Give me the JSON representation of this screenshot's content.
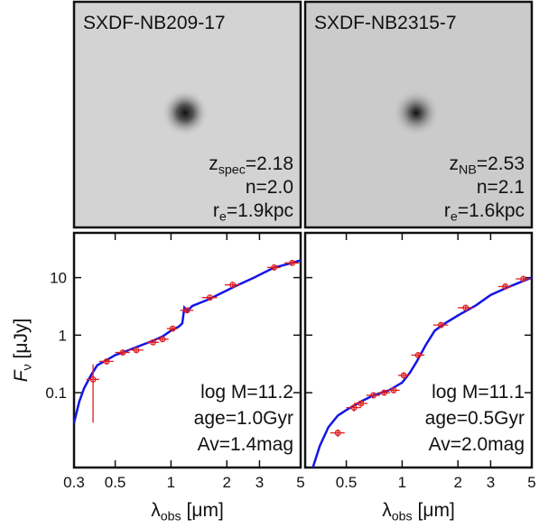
{
  "chart_data": [
    {
      "type": "sed",
      "stamp_title": "SXDF-NB209-17",
      "stamp_notes": [
        {
          "text": "z",
          "sub": "spec",
          "rest": "=2.18"
        },
        {
          "text": "n=2.0"
        },
        {
          "text": "r",
          "sub": "e",
          "rest": "=1.9kpc"
        }
      ],
      "notes": [
        "log M=11.2",
        "age=1.0Gyr",
        "Av=1.4mag"
      ],
      "x_label": {
        "text": "λ",
        "sub": "obs",
        "rest": " [μm]"
      },
      "y_label": {
        "text": "F",
        "sub": "ν",
        "rest": " [μJy]"
      },
      "xlog": true,
      "ylog": true,
      "xlim": [
        0.3,
        5
      ],
      "ylim": [
        0.005,
        60
      ],
      "xticks": [
        0.3,
        0.5,
        1,
        2,
        3,
        5
      ],
      "yticks": [
        0.1,
        1,
        10
      ],
      "model": {
        "color": "#1414e6",
        "x": [
          0.3,
          0.32,
          0.34,
          0.37,
          0.4,
          0.45,
          0.5,
          0.55,
          0.65,
          0.8,
          0.9,
          1.0,
          1.1,
          1.15,
          1.18,
          1.22,
          1.3,
          1.6,
          2.0,
          2.2,
          2.8,
          3.6,
          4.2,
          5.0
        ],
        "values": [
          0.03,
          0.07,
          0.12,
          0.2,
          0.3,
          0.37,
          0.45,
          0.5,
          0.62,
          0.8,
          0.95,
          1.2,
          1.4,
          1.6,
          3.0,
          2.6,
          3.2,
          4.2,
          6.0,
          7.0,
          10,
          15,
          17,
          20
        ]
      },
      "photometry": {
        "color": "#e01c1c",
        "x": [
          0.38,
          0.45,
          0.55,
          0.65,
          0.8,
          0.9,
          1.02,
          1.22,
          1.62,
          2.15,
          3.6,
          4.5
        ],
        "values": [
          0.17,
          0.35,
          0.5,
          0.55,
          0.75,
          0.85,
          1.3,
          2.7,
          4.5,
          7.5,
          15,
          18
        ],
        "xerr": [
          0.03,
          0.04,
          0.05,
          0.06,
          0.06,
          0.07,
          0.07,
          0.1,
          0.15,
          0.2,
          0.3,
          0.4
        ],
        "yerr": [
          0.14,
          0.03,
          0.04,
          0.04,
          0.05,
          0.06,
          0.1,
          0.2,
          0.3,
          0.5,
          1,
          1.2
        ]
      }
    },
    {
      "type": "sed",
      "stamp_title": "SXDF-NB2315-7",
      "stamp_notes": [
        {
          "text": "z",
          "sub": "NB",
          "rest": "=2.53"
        },
        {
          "text": "n=2.1"
        },
        {
          "text": "r",
          "sub": "e",
          "rest": "=1.6kpc"
        }
      ],
      "notes": [
        "log M=11.1",
        "age=0.5Gyr",
        "Av=2.0mag"
      ],
      "x_label": {
        "text": "λ",
        "sub": "obs",
        "rest": " [μm]"
      },
      "xlog": true,
      "ylog": true,
      "xlim": [
        0.3,
        5
      ],
      "ylim": [
        0.005,
        60
      ],
      "xticks": [
        0.5,
        1,
        2,
        3,
        5
      ],
      "model": {
        "color": "#1414e6",
        "x": [
          0.33,
          0.36,
          0.4,
          0.45,
          0.5,
          0.6,
          0.7,
          0.85,
          1.0,
          1.1,
          1.2,
          1.35,
          1.5,
          1.7,
          2.0,
          2.5,
          3.0,
          3.6,
          4.2,
          5.0
        ],
        "values": [
          0.005,
          0.012,
          0.025,
          0.04,
          0.05,
          0.07,
          0.09,
          0.11,
          0.15,
          0.22,
          0.35,
          0.7,
          1.2,
          1.6,
          2.2,
          3.3,
          5.0,
          6.5,
          8.0,
          10
        ]
      },
      "photometry": {
        "color": "#e01c1c",
        "x": [
          0.45,
          0.55,
          0.6,
          0.7,
          0.8,
          0.9,
          1.02,
          1.22,
          1.62,
          2.2,
          3.6,
          4.5
        ],
        "values": [
          0.02,
          0.055,
          0.065,
          0.09,
          0.1,
          0.11,
          0.2,
          0.45,
          1.5,
          3,
          7,
          9.5
        ],
        "xerr": [
          0.04,
          0.05,
          0.05,
          0.06,
          0.06,
          0.07,
          0.07,
          0.1,
          0.15,
          0.2,
          0.3,
          0.4
        ],
        "yerr": [
          0.003,
          0.008,
          0.008,
          0.01,
          0.01,
          0.012,
          0.02,
          0.04,
          0.15,
          0.3,
          0.6,
          0.8
        ]
      }
    }
  ]
}
